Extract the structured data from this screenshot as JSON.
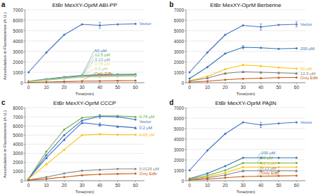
{
  "chart_data": [
    {
      "type": "line",
      "panel_label": "a",
      "title": "EtBr MexXY-OprM ABI-PP",
      "xlabel": "Time(min)",
      "ylabel": "Accumulation in Fluorescence (A.U.)",
      "x": [
        0,
        10,
        20,
        30,
        40,
        50,
        60
      ],
      "xlim": [
        -2,
        65
      ],
      "xticks": [
        0,
        10,
        20,
        30,
        40,
        50,
        60
      ],
      "ylim": [
        0,
        7000
      ],
      "yticks": [
        0,
        1000,
        2000,
        3000,
        4000,
        5000,
        6000,
        7000
      ],
      "grid": true,
      "series": [
        {
          "name": "Vector",
          "color": "#4472C4",
          "marker": "circle",
          "values": [
            1000,
            2900,
            4600,
            5600,
            5500,
            5600,
            5650
          ],
          "yerr": [
            0,
            0,
            0,
            0,
            280,
            0,
            0
          ]
        },
        {
          "name": "50 μM",
          "color": "#4472C4",
          "marker": "circle",
          "values": [
            150,
            350,
            550,
            700,
            760,
            800,
            820
          ],
          "yerr": [
            0,
            0,
            0,
            0,
            0,
            0,
            0
          ]
        },
        {
          "name": "12.5 μM",
          "color": "#70AD47",
          "marker": "circle",
          "values": [
            130,
            310,
            500,
            660,
            710,
            750,
            770
          ],
          "yerr": [
            0,
            0,
            0,
            0,
            0,
            0,
            0
          ]
        },
        {
          "name": "3.13 μM",
          "color": "#5B9BD5",
          "marker": "circle",
          "values": [
            120,
            280,
            460,
            620,
            660,
            700,
            720
          ],
          "yerr": [
            0,
            0,
            0,
            0,
            0,
            0,
            0
          ]
        },
        {
          "name": "0.78 μM",
          "color": "#FFD966",
          "marker": "circle",
          "values": [
            110,
            250,
            420,
            570,
            610,
            640,
            660
          ],
          "yerr": [
            0,
            0,
            0,
            0,
            0,
            0,
            0
          ]
        },
        {
          "name": "0.2 μM",
          "color": "#A9D18E",
          "marker": "circle",
          "values": [
            100,
            230,
            390,
            530,
            570,
            600,
            620
          ],
          "yerr": [
            0,
            0,
            0,
            0,
            0,
            0,
            0
          ]
        },
        {
          "name": "Only EtBr",
          "color": "#C55A11",
          "marker": "circle",
          "values": [
            30,
            70,
            110,
            150,
            170,
            190,
            200
          ],
          "yerr": [
            0,
            0,
            0,
            0,
            0,
            0,
            0
          ]
        }
      ],
      "annotations": [
        {
          "text": "Vector",
          "color": "#4472C4",
          "x": 62,
          "y": 5650
        },
        {
          "text": "50 μM",
          "color": "#4472C4",
          "x": 37,
          "y": 3100,
          "target_x": 30,
          "target_y": 760
        },
        {
          "text": "12.5 μM",
          "color": "#70AD47",
          "x": 37,
          "y": 2700,
          "target_x": 30,
          "target_y": 710
        },
        {
          "text": "3.13 μM",
          "color": "#5B9BD5",
          "x": 37,
          "y": 2350,
          "target_x": 30,
          "target_y": 670
        },
        {
          "text": "0.78 μM",
          "color": "#FFD966",
          "x": 37,
          "y": 1900,
          "target_x": 30,
          "target_y": 640
        },
        {
          "text": "0.2 μM",
          "color": "#A9D18E",
          "x": 37,
          "y": 1500,
          "target_x": 30,
          "target_y": 620
        },
        {
          "text": "Only EtBr",
          "color": "#C55A11",
          "x": 37,
          "y": 1100,
          "target_x": 30,
          "target_y": 200
        }
      ]
    },
    {
      "type": "line",
      "panel_label": "b",
      "title": "EtBr MexXY-OprM Berberine",
      "xlabel": "Time(min)",
      "x": [
        0,
        10,
        20,
        30,
        40,
        50,
        60
      ],
      "xlim": [
        -2,
        65
      ],
      "xticks": [
        0,
        10,
        20,
        30,
        40,
        50,
        60
      ],
      "ylim": [
        0,
        7000
      ],
      "yticks": [
        0,
        1000,
        2000,
        3000,
        4000,
        5000,
        6000,
        7000
      ],
      "grid": true,
      "series": [
        {
          "name": "Vector",
          "color": "#4472C4",
          "marker": "circle",
          "values": [
            1000,
            2900,
            4600,
            5500,
            5350,
            5550,
            5600
          ],
          "yerr": [
            0,
            0,
            0,
            0,
            300,
            0,
            250
          ]
        },
        {
          "name": "200 μM",
          "color": "#2E75B6",
          "marker": "circle",
          "values": [
            400,
            1500,
            2800,
            3400,
            3350,
            3250,
            3300
          ],
          "yerr": [
            0,
            0,
            0,
            150,
            0,
            0,
            0
          ]
        },
        {
          "name": "50 μM",
          "color": "#FFC000",
          "marker": "circle",
          "values": [
            200,
            600,
            1300,
            1700,
            1600,
            1450,
            1350
          ],
          "yerr": [
            0,
            0,
            0,
            0,
            0,
            0,
            0
          ]
        },
        {
          "name": "12.5 μM",
          "color": "#7F7F7F",
          "marker": "triangle",
          "values": [
            150,
            450,
            900,
            1050,
            1000,
            950,
            900
          ],
          "yerr": [
            0,
            0,
            0,
            0,
            0,
            0,
            0
          ]
        },
        {
          "name": "Only EtBr",
          "color": "#C55A11",
          "marker": "circle",
          "values": [
            50,
            150,
            280,
            380,
            430,
            480,
            500
          ],
          "yerr": [
            0,
            0,
            0,
            0,
            0,
            0,
            0
          ]
        }
      ],
      "annotations": [
        {
          "text": "Vector",
          "color": "#4472C4",
          "x": 62,
          "y": 5600
        },
        {
          "text": "200 μM",
          "color": "#2E75B6",
          "x": 62,
          "y": 3300
        },
        {
          "text": "50 μM",
          "color": "#FFC000",
          "x": 62,
          "y": 1350
        },
        {
          "text": "12.5 μM",
          "color": "#7F7F7F",
          "x": 62,
          "y": 900
        },
        {
          "text": "Only EtBr",
          "color": "#C55A11",
          "x": 62,
          "y": 500
        }
      ]
    },
    {
      "type": "line",
      "panel_label": "c",
      "title": "EtBr MexXY-OprM CCCP",
      "xlabel": "Time(min)",
      "ylabel": "Accumulation in Fluorescence (A.U.)",
      "x": [
        0,
        10,
        20,
        30,
        40,
        50,
        60
      ],
      "xlim": [
        -2,
        65
      ],
      "xticks": [
        0,
        10,
        20,
        30,
        40,
        50,
        60
      ],
      "ylim": [
        0,
        8000
      ],
      "yticks": [
        0,
        1000,
        2000,
        3000,
        4000,
        5000,
        6000,
        7000,
        8000
      ],
      "grid": true,
      "series": [
        {
          "name": "0.78 μM",
          "color": "#70AD47",
          "marker": "circle",
          "values": [
            200,
            3200,
            5600,
            6900,
            7100,
            7100,
            7000
          ],
          "yerr": [
            0,
            0,
            0,
            0,
            0,
            0,
            0
          ]
        },
        {
          "name": "Vector",
          "color": "#4472C4",
          "marker": "circle",
          "values": [
            200,
            2800,
            5000,
            6600,
            7050,
            7000,
            6700
          ],
          "yerr": [
            0,
            0,
            0,
            0,
            220,
            0,
            0
          ]
        },
        {
          "name": "0.2 μM",
          "color": "#4472C4",
          "marker": "triangle",
          "values": [
            200,
            2500,
            4500,
            6350,
            6150,
            5950,
            5800
          ],
          "yerr": [
            0,
            0,
            0,
            0,
            180,
            0,
            0
          ]
        },
        {
          "name": "0.06 μM",
          "color": "#FFC000",
          "marker": "circle",
          "values": [
            200,
            1800,
            3400,
            5000,
            5100,
            5050,
            5050
          ],
          "yerr": [
            0,
            0,
            0,
            0,
            0,
            0,
            0
          ]
        },
        {
          "name": "0.0125 μM",
          "color": "#7F7F7F",
          "marker": "circle",
          "values": [
            100,
            400,
            800,
            1100,
            1200,
            1300,
            1300
          ],
          "yerr": [
            0,
            0,
            0,
            0,
            0,
            0,
            0
          ]
        },
        {
          "name": "Only EtBr",
          "color": "#C55A11",
          "marker": "circle",
          "values": [
            50,
            200,
            400,
            600,
            700,
            750,
            780
          ],
          "yerr": [
            0,
            0,
            0,
            0,
            0,
            0,
            0
          ]
        }
      ],
      "annotations": [
        {
          "text": "0.78 μM",
          "color": "#70AD47",
          "x": 62,
          "y": 7000
        },
        {
          "text": "Vector",
          "color": "#4472C4",
          "x": 62,
          "y": 6700
        },
        {
          "text": "0.2 μM",
          "color": "#4472C4",
          "x": 62,
          "y": 5800
        },
        {
          "text": "0.06 μM",
          "color": "#FFC000",
          "x": 62,
          "y": 5050
        },
        {
          "text": "0.0125 μM",
          "color": "#7F7F7F",
          "x": 62,
          "y": 1300
        },
        {
          "text": "Only EtBr",
          "color": "#C55A11",
          "x": 62,
          "y": 780
        }
      ]
    },
    {
      "type": "line",
      "panel_label": "d",
      "title": "EtBr MexXY-OprM PAβN",
      "xlabel": "Time(min)",
      "x": [
        0,
        10,
        20,
        30,
        40,
        50,
        60
      ],
      "xlim": [
        -2,
        65
      ],
      "xticks": [
        0,
        10,
        20,
        30,
        40,
        50,
        60
      ],
      "ylim": [
        0,
        7000
      ],
      "yticks": [
        0,
        1000,
        2000,
        3000,
        4000,
        5000,
        6000,
        7000
      ],
      "grid": true,
      "series": [
        {
          "name": "Vector",
          "color": "#4472C4",
          "marker": "circle",
          "values": [
            1000,
            2900,
            4500,
            5600,
            5350,
            5500,
            5600
          ],
          "yerr": [
            0,
            0,
            0,
            0,
            250,
            0,
            0
          ]
        },
        {
          "name": "200 μM",
          "color": "#2E75B6",
          "marker": "circle",
          "values": [
            200,
            700,
            1400,
            2200,
            2200,
            2200,
            2200
          ],
          "yerr": [
            0,
            0,
            0,
            0,
            0,
            0,
            0
          ]
        },
        {
          "name": "50 μM",
          "color": "#70AD47",
          "marker": "circle",
          "values": [
            150,
            500,
            1000,
            1700,
            1700,
            1700,
            1700
          ],
          "yerr": [
            0,
            0,
            0,
            0,
            0,
            0,
            0
          ]
        },
        {
          "name": "12.5 μM",
          "color": "#FFC000",
          "marker": "circle",
          "values": [
            120,
            380,
            750,
            1300,
            1300,
            1300,
            1300
          ],
          "yerr": [
            0,
            0,
            0,
            0,
            0,
            0,
            0
          ]
        },
        {
          "name": "3.13 μM",
          "color": "#7F7F7F",
          "marker": "triangle",
          "values": [
            100,
            280,
            550,
            950,
            950,
            950,
            950
          ],
          "yerr": [
            0,
            0,
            0,
            0,
            0,
            0,
            0
          ]
        },
        {
          "name": "Only EtBr",
          "color": "#C55A11",
          "marker": "circle",
          "values": [
            50,
            150,
            280,
            400,
            430,
            460,
            480
          ],
          "yerr": [
            0,
            0,
            0,
            0,
            0,
            0,
            0
          ]
        }
      ],
      "annotations": [
        {
          "text": "Vector",
          "color": "#4472C4",
          "x": 62,
          "y": 5600
        },
        {
          "text": "200 μM",
          "color": "#2E75B6",
          "x": 40,
          "y": 2700,
          "target_x": 38,
          "target_y": 2200
        },
        {
          "text": "50 μM",
          "color": "#70AD47",
          "x": 40,
          "y": 2200,
          "target_x": 38,
          "target_y": 1700
        },
        {
          "text": "12.5 μM",
          "color": "#FFC000",
          "x": 40,
          "y": 1700,
          "target_x": 38,
          "target_y": 1300
        },
        {
          "text": "3.13 μM",
          "color": "#7F7F7F",
          "x": 40,
          "y": 1200,
          "target_x": 38,
          "target_y": 950
        },
        {
          "text": "Only EtBr",
          "color": "#C55A11",
          "x": 40,
          "y": 800,
          "target_x": 38,
          "target_y": 480
        }
      ]
    }
  ]
}
